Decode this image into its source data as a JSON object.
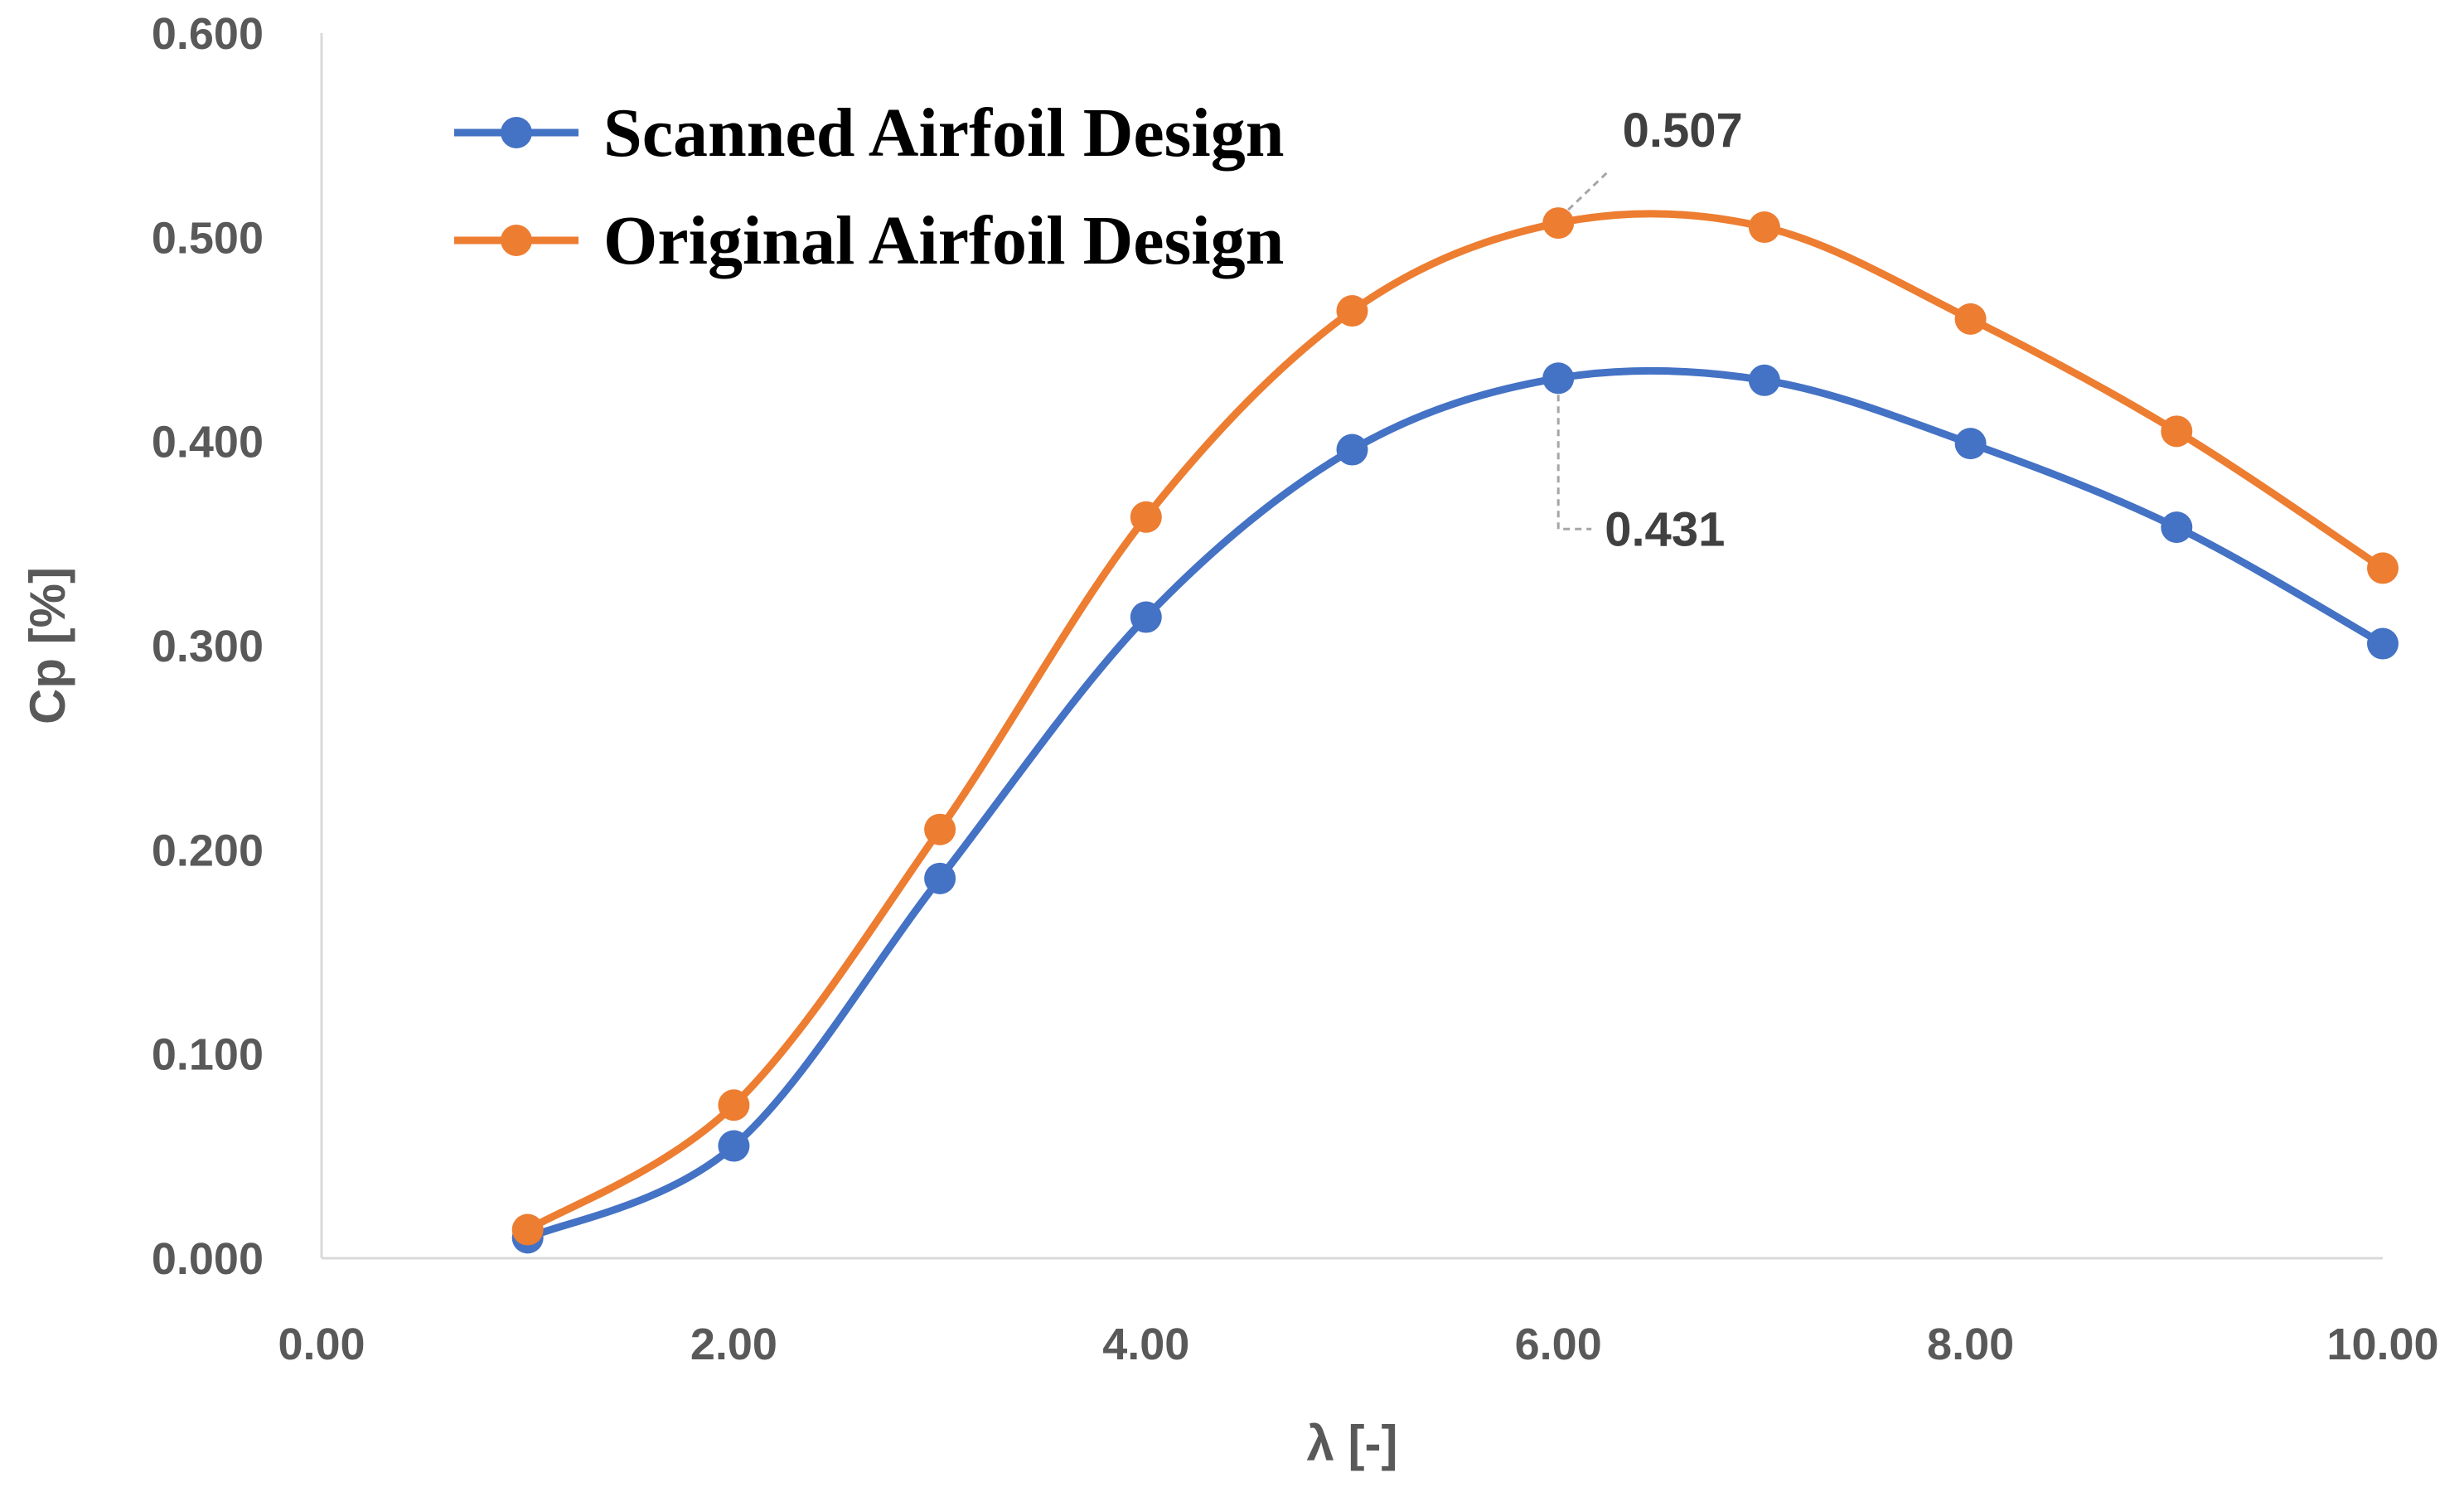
{
  "chart_data": {
    "type": "line",
    "xlabel": "λ [-]",
    "ylabel": "Cp [%]",
    "xlim": [
      0,
      10
    ],
    "ylim": [
      0,
      0.6
    ],
    "x_ticks": [
      "0.00",
      "2.00",
      "4.00",
      "6.00",
      "8.00",
      "10.00"
    ],
    "y_ticks": [
      "0.000",
      "0.100",
      "0.200",
      "0.300",
      "0.400",
      "0.500",
      "0.600"
    ],
    "grid": false,
    "legend_position": "top-left",
    "series": [
      {
        "name": "Scanned Airfoil Design",
        "color": "#4472C4",
        "x": [
          1,
          2,
          3,
          4,
          5,
          6,
          7,
          8,
          9,
          10
        ],
        "y": [
          0.01,
          0.055,
          0.186,
          0.314,
          0.396,
          0.431,
          0.43,
          0.399,
          0.358,
          0.301
        ]
      },
      {
        "name": "Original Airfoil Design",
        "color": "#ED7D31",
        "x": [
          1,
          2,
          3,
          4,
          5,
          6,
          7,
          8,
          9,
          10
        ],
        "y": [
          0.014,
          0.075,
          0.21,
          0.363,
          0.464,
          0.507,
          0.505,
          0.46,
          0.405,
          0.338
        ]
      }
    ],
    "annotations": [
      {
        "text": "0.507",
        "series": 1,
        "x": 6
      },
      {
        "text": "0.431",
        "series": 0,
        "x": 6
      }
    ]
  }
}
